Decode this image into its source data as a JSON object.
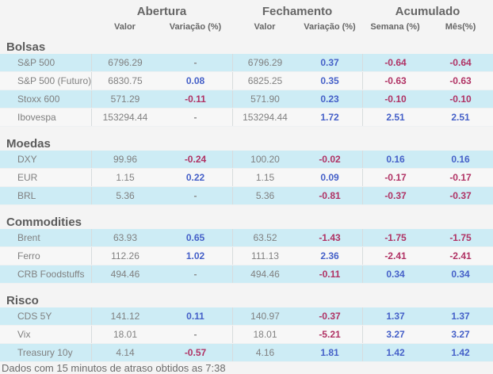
{
  "header": {
    "groups": [
      {
        "label": "Abertura",
        "subs": [
          "Valor",
          "Variação (%)"
        ]
      },
      {
        "label": "Fechamento",
        "subs": [
          "Valor",
          "Variação (%)"
        ]
      },
      {
        "label": "Acumulado",
        "subs": [
          "Semana (%)",
          "Mês(%)"
        ]
      }
    ]
  },
  "sections": [
    {
      "title": "Bolsas",
      "rows": [
        {
          "label": "S&P 500",
          "cells": [
            {
              "v": "6796.29",
              "c": "plain"
            },
            {
              "v": "-",
              "c": "neutral"
            },
            {
              "v": "6796.29",
              "c": "plain"
            },
            {
              "v": "0.37",
              "c": "up"
            },
            {
              "v": "-0.64",
              "c": "down"
            },
            {
              "v": "-0.64",
              "c": "down"
            }
          ]
        },
        {
          "label": "S&P 500 (Futuro)",
          "cells": [
            {
              "v": "6830.75",
              "c": "plain"
            },
            {
              "v": "0.08",
              "c": "up"
            },
            {
              "v": "6825.25",
              "c": "plain"
            },
            {
              "v": "0.35",
              "c": "up"
            },
            {
              "v": "-0.63",
              "c": "down"
            },
            {
              "v": "-0.63",
              "c": "down"
            }
          ]
        },
        {
          "label": "Stoxx 600",
          "cells": [
            {
              "v": "571.29",
              "c": "plain"
            },
            {
              "v": "-0.11",
              "c": "down"
            },
            {
              "v": "571.90",
              "c": "plain"
            },
            {
              "v": "0.23",
              "c": "up"
            },
            {
              "v": "-0.10",
              "c": "down"
            },
            {
              "v": "-0.10",
              "c": "down"
            }
          ]
        },
        {
          "label": "Ibovespa",
          "cells": [
            {
              "v": "153294.44",
              "c": "plain"
            },
            {
              "v": "-",
              "c": "neutral"
            },
            {
              "v": "153294.44",
              "c": "plain"
            },
            {
              "v": "1.72",
              "c": "up"
            },
            {
              "v": "2.51",
              "c": "up"
            },
            {
              "v": "2.51",
              "c": "up"
            }
          ]
        }
      ]
    },
    {
      "title": "Moedas",
      "rows": [
        {
          "label": "DXY",
          "cells": [
            {
              "v": "99.96",
              "c": "plain"
            },
            {
              "v": "-0.24",
              "c": "down"
            },
            {
              "v": "100.20",
              "c": "plain"
            },
            {
              "v": "-0.02",
              "c": "down"
            },
            {
              "v": "0.16",
              "c": "up"
            },
            {
              "v": "0.16",
              "c": "up"
            }
          ]
        },
        {
          "label": "EUR",
          "cells": [
            {
              "v": "1.15",
              "c": "plain"
            },
            {
              "v": "0.22",
              "c": "up"
            },
            {
              "v": "1.15",
              "c": "plain"
            },
            {
              "v": "0.09",
              "c": "up"
            },
            {
              "v": "-0.17",
              "c": "down"
            },
            {
              "v": "-0.17",
              "c": "down"
            }
          ]
        },
        {
          "label": "BRL",
          "cells": [
            {
              "v": "5.36",
              "c": "plain"
            },
            {
              "v": "-",
              "c": "neutral"
            },
            {
              "v": "5.36",
              "c": "plain"
            },
            {
              "v": "-0.81",
              "c": "down"
            },
            {
              "v": "-0.37",
              "c": "down"
            },
            {
              "v": "-0.37",
              "c": "down"
            }
          ]
        }
      ]
    },
    {
      "title": "Commodities",
      "rows": [
        {
          "label": "Brent",
          "cells": [
            {
              "v": "63.93",
              "c": "plain"
            },
            {
              "v": "0.65",
              "c": "up"
            },
            {
              "v": "63.52",
              "c": "plain"
            },
            {
              "v": "-1.43",
              "c": "down"
            },
            {
              "v": "-1.75",
              "c": "down"
            },
            {
              "v": "-1.75",
              "c": "down"
            }
          ]
        },
        {
          "label": "Ferro",
          "cells": [
            {
              "v": "112.26",
              "c": "plain"
            },
            {
              "v": "1.02",
              "c": "up"
            },
            {
              "v": "111.13",
              "c": "plain"
            },
            {
              "v": "2.36",
              "c": "up"
            },
            {
              "v": "-2.41",
              "c": "down"
            },
            {
              "v": "-2.41",
              "c": "down"
            }
          ]
        },
        {
          "label": "CRB Foodstuffs",
          "cells": [
            {
              "v": "494.46",
              "c": "plain"
            },
            {
              "v": "-",
              "c": "neutral"
            },
            {
              "v": "494.46",
              "c": "plain"
            },
            {
              "v": "-0.11",
              "c": "down"
            },
            {
              "v": "0.34",
              "c": "up"
            },
            {
              "v": "0.34",
              "c": "up"
            }
          ]
        }
      ]
    },
    {
      "title": "Risco",
      "rows": [
        {
          "label": "CDS 5Y",
          "cells": [
            {
              "v": "141.12",
              "c": "plain"
            },
            {
              "v": "0.11",
              "c": "up"
            },
            {
              "v": "140.97",
              "c": "plain"
            },
            {
              "v": "-0.37",
              "c": "down"
            },
            {
              "v": "1.37",
              "c": "up"
            },
            {
              "v": "1.37",
              "c": "up"
            }
          ]
        },
        {
          "label": "Vix",
          "cells": [
            {
              "v": "18.01",
              "c": "plain"
            },
            {
              "v": "-",
              "c": "neutral"
            },
            {
              "v": "18.01",
              "c": "plain"
            },
            {
              "v": "-5.21",
              "c": "down"
            },
            {
              "v": "3.27",
              "c": "up"
            },
            {
              "v": "3.27",
              "c": "up"
            }
          ]
        },
        {
          "label": "Treasury 10y",
          "cells": [
            {
              "v": "4.14",
              "c": "plain"
            },
            {
              "v": "-0.57",
              "c": "down"
            },
            {
              "v": "4.16",
              "c": "plain"
            },
            {
              "v": "1.81",
              "c": "up"
            },
            {
              "v": "1.42",
              "c": "up"
            },
            {
              "v": "1.42",
              "c": "up"
            }
          ]
        }
      ]
    }
  ],
  "footer": {
    "note": "Dados com 15 minutos de atraso obtidos as 7:38"
  },
  "colors": {
    "positive": "#4560c8",
    "negative": "#b03264",
    "neutral": "#8a8a8a",
    "rowBlue": "#cdecf5",
    "rowAlt": "#f7f7f7",
    "bg": "#f4f4f4",
    "text": "#808080",
    "heading": "#5c5c5c"
  }
}
